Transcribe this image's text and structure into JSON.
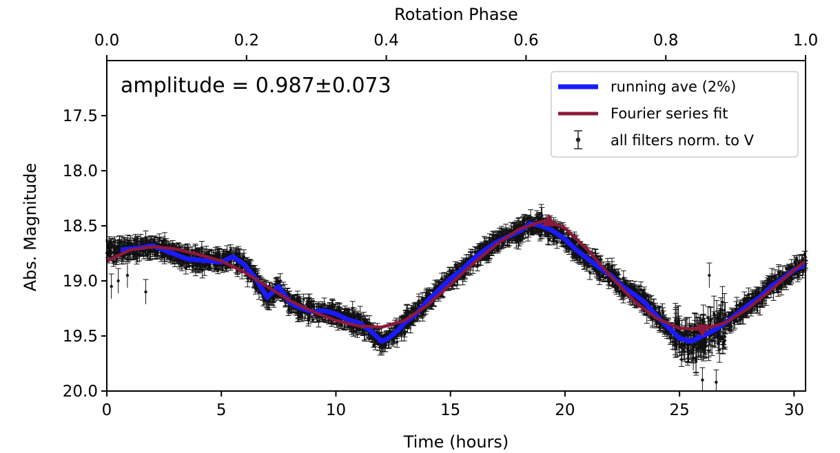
{
  "chart_data": {
    "type": "scatter",
    "xlabel": "Time (hours)",
    "ylabel": "Abs. Magnitude",
    "x2label": "Rotation Phase",
    "xlim": [
      0,
      30.5
    ],
    "ylim": [
      20.0,
      17.0
    ],
    "y_inverted": true,
    "x_ticks": [
      "0",
      "5",
      "10",
      "15",
      "20",
      "25",
      "30"
    ],
    "x_tick_values": [
      0,
      5,
      10,
      15,
      20,
      25,
      30
    ],
    "y_ticks": [
      "17.5",
      "18.0",
      "18.5",
      "19.0",
      "19.5",
      "20.0"
    ],
    "y_tick_values": [
      17.5,
      18.0,
      18.5,
      19.0,
      19.5,
      20.0
    ],
    "x2_ticks": [
      "0.0",
      "0.2",
      "0.4",
      "0.6",
      "0.8",
      "1.0"
    ],
    "x2_tick_values": [
      0.0,
      0.2,
      0.4,
      0.6,
      0.8,
      1.0
    ],
    "annotation": "amplitude  = 0.987±0.073",
    "grid": false,
    "legend_position": "top-right",
    "legend": [
      {
        "label": "running ave (2%)",
        "color": "#1a1aff",
        "kind": "line"
      },
      {
        "label": "Fourier series fit",
        "color": "#8b1a3a",
        "kind": "line"
      },
      {
        "label": "all filters norm. to V",
        "color": "#222222",
        "kind": "errorbar"
      }
    ],
    "series": [
      {
        "name": "running ave (2%)",
        "color": "#1a1aff",
        "x": [
          0.6,
          1.0,
          1.5,
          2.0,
          2.5,
          3.0,
          3.5,
          4.0,
          4.5,
          5.0,
          5.5,
          6.0,
          6.5,
          7.0,
          7.5,
          8.0,
          8.5,
          9.0,
          9.5,
          10.0,
          10.5,
          11.0,
          11.5,
          12.0,
          12.3,
          12.7,
          13.0,
          13.5,
          14.0,
          14.5,
          15.0,
          15.5,
          16.0,
          16.5,
          17.0,
          17.5,
          18.0,
          18.5,
          19.0,
          19.5,
          20.0,
          20.5,
          21.0,
          21.5,
          22.0,
          22.5,
          23.0,
          23.5,
          24.0,
          24.5,
          25.0,
          25.5,
          26.0,
          26.5,
          27.0,
          27.5,
          28.0,
          28.5,
          29.0,
          29.5,
          30.0,
          30.5
        ],
        "y": [
          18.72,
          18.71,
          18.7,
          18.68,
          18.72,
          18.76,
          18.8,
          18.81,
          18.82,
          18.83,
          18.78,
          18.85,
          18.98,
          19.15,
          19.05,
          19.2,
          19.25,
          19.28,
          19.27,
          19.3,
          19.35,
          19.38,
          19.45,
          19.55,
          19.52,
          19.45,
          19.38,
          19.3,
          19.18,
          19.08,
          18.98,
          18.9,
          18.8,
          18.72,
          18.65,
          18.6,
          18.55,
          18.48,
          18.5,
          18.55,
          18.62,
          18.72,
          18.8,
          18.88,
          18.95,
          19.05,
          19.12,
          19.2,
          19.32,
          19.42,
          19.52,
          19.55,
          19.5,
          19.45,
          19.38,
          19.3,
          19.22,
          19.15,
          19.05,
          18.98,
          18.9,
          18.85
        ]
      },
      {
        "name": "Fourier series fit",
        "color": "#8b1a3a",
        "x": [
          0,
          1,
          2,
          3,
          4,
          5,
          6,
          7,
          8,
          9,
          10,
          11,
          12,
          13,
          14,
          15,
          16,
          17,
          18,
          19,
          19.3,
          20,
          21,
          22,
          23,
          24,
          25,
          26,
          27,
          28,
          29,
          30,
          30.5
        ],
        "y": [
          18.82,
          18.72,
          18.69,
          18.71,
          18.76,
          18.82,
          18.92,
          19.05,
          19.18,
          19.28,
          19.36,
          19.41,
          19.42,
          19.36,
          19.22,
          19.03,
          18.84,
          18.67,
          18.53,
          18.46,
          18.46,
          18.52,
          18.72,
          18.96,
          19.18,
          19.34,
          19.43,
          19.44,
          19.38,
          19.25,
          19.08,
          18.9,
          18.82
        ]
      }
    ],
    "markers": [
      {
        "shape": "triangle-up",
        "x": 19.3,
        "y": 18.46,
        "color": "#8b1a3a"
      },
      {
        "shape": "triangle-down",
        "x": 26.0,
        "y": 19.44,
        "color": "#8b1a3a"
      }
    ]
  }
}
